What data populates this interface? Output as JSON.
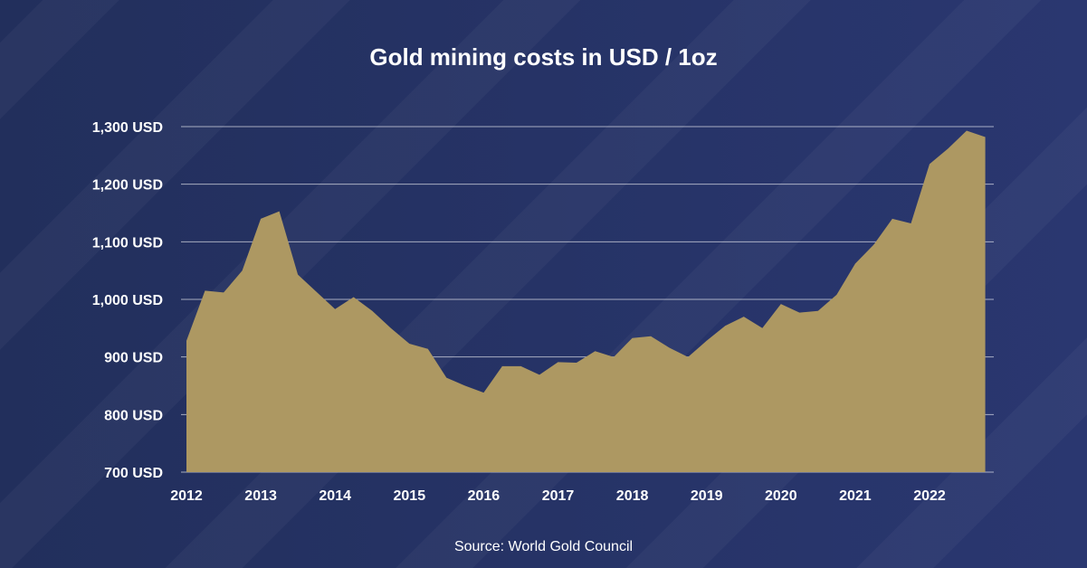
{
  "chart_data": {
    "type": "area",
    "title": "Gold mining costs in USD / 1oz",
    "source": "Source: World Gold Council",
    "ylim": [
      700,
      1300
    ],
    "yticks": [
      700,
      800,
      900,
      1000,
      1100,
      1200,
      1300
    ],
    "ytick_labels": [
      "700 USD",
      "800 USD",
      "900 USD",
      "1,000 USD",
      "1,100 USD",
      "1,200 USD",
      "1,300 USD"
    ],
    "xticks": [
      "2012",
      "2013",
      "2014",
      "2015",
      "2016",
      "2017",
      "2018",
      "2019",
      "2020",
      "2021",
      "2022"
    ],
    "grid": true,
    "fill_color": "#ad9862",
    "background_color": "#23305e",
    "x": [
      2012.0,
      2012.25,
      2012.5,
      2012.75,
      2013.0,
      2013.25,
      2013.5,
      2013.75,
      2014.0,
      2014.25,
      2014.5,
      2014.75,
      2015.0,
      2015.25,
      2015.5,
      2015.75,
      2016.0,
      2016.25,
      2016.5,
      2016.75,
      2017.0,
      2017.25,
      2017.5,
      2017.75,
      2018.0,
      2018.25,
      2018.5,
      2018.75,
      2019.0,
      2019.25,
      2019.5,
      2019.75,
      2020.0,
      2020.25,
      2020.5,
      2020.75,
      2021.0,
      2021.25,
      2021.5,
      2021.75,
      2022.0,
      2022.25,
      2022.5,
      2022.75
    ],
    "values": [
      928,
      1015,
      1012,
      1050,
      1140,
      1153,
      1043,
      1013,
      983,
      1004,
      980,
      950,
      923,
      914,
      864,
      850,
      838,
      884,
      884,
      869,
      891,
      890,
      910,
      900,
      933,
      936,
      916,
      900,
      928,
      954,
      970,
      950,
      992,
      977,
      980,
      1008,
      1062,
      1095,
      1140,
      1132,
      1235,
      1262,
      1293,
      1282
    ]
  }
}
